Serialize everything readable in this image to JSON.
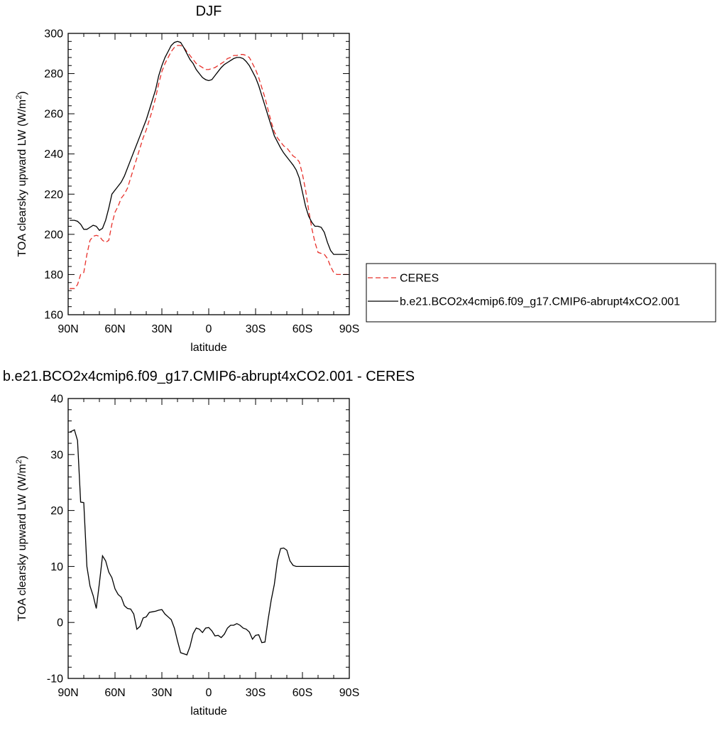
{
  "chart_data": [
    {
      "type": "line",
      "title": "DJF",
      "xlabel": "latitude",
      "ylabel": "TOA clearsky upward LW (W/m",
      "ylabel_sup": "2",
      "ylabel_end": ")",
      "xlim": [
        90,
        -90
      ],
      "ylim": [
        160,
        300
      ],
      "x_ticks": [
        90,
        60,
        30,
        0,
        -30,
        -60,
        -90
      ],
      "x_tick_labels": [
        "90N",
        "60N",
        "30N",
        "0",
        "30S",
        "60S",
        "90S"
      ],
      "y_ticks": [
        160,
        180,
        200,
        220,
        240,
        260,
        280,
        300
      ],
      "y_tick_labels": [
        "160",
        "180",
        "200",
        "220",
        "240",
        "260",
        "280",
        "300"
      ],
      "legend": "right",
      "series": [
        {
          "name": "CERES",
          "color": "#e8302a",
          "dash": "dashed",
          "x": [
            89,
            86,
            84,
            82,
            80,
            78,
            76,
            74,
            72,
            70,
            68,
            66,
            64,
            62,
            60,
            58,
            56,
            54,
            52,
            50,
            48,
            46,
            44,
            42,
            40,
            38,
            36,
            34,
            32,
            30,
            28,
            26,
            24,
            22,
            20,
            18,
            16,
            14,
            12,
            10,
            8,
            6,
            4,
            2,
            0,
            -2,
            -4,
            -6,
            -8,
            -10,
            -12,
            -14,
            -16,
            -18,
            -20,
            -22,
            -24,
            -26,
            -28,
            -30,
            -32,
            -34,
            -36,
            -38,
            -40,
            -42,
            -44,
            -46,
            -48,
            -50,
            -52,
            -54,
            -56,
            -58,
            -60,
            -62,
            -64,
            -66,
            -68,
            -70,
            -72,
            -74,
            -76,
            -78,
            -80,
            -82,
            -84,
            -86,
            -88,
            -89
          ],
          "y": [
            173,
            173,
            175,
            180,
            181,
            190,
            197,
            199,
            199.5,
            199,
            197,
            196,
            197,
            205,
            211,
            214,
            218,
            220,
            223,
            228,
            233,
            238,
            243,
            248,
            252,
            257,
            262,
            268,
            275,
            281,
            285,
            288,
            291,
            293,
            294,
            294,
            293,
            291,
            289,
            287,
            285,
            284,
            283,
            282,
            282,
            282.5,
            283,
            284,
            285,
            286,
            287.5,
            288,
            289,
            289,
            289.5,
            289.5,
            289,
            288,
            285,
            282,
            278,
            273,
            268,
            262,
            256,
            251,
            248,
            246,
            244,
            243,
            241,
            239,
            238,
            236,
            230,
            222,
            212,
            203,
            196,
            191,
            190.5,
            190,
            188,
            184,
            181,
            180,
            180,
            180,
            180,
            180
          ],
          "comment_ignore": ""
        },
        {
          "name": "b.e21.BCO2x4cmip6.f09_g17.CMIP6-abrupt4xCO2.001",
          "color": "#000000",
          "dash": "solid",
          "x": [
            89,
            86,
            84,
            82,
            80,
            78,
            76,
            74,
            72,
            70,
            68,
            66,
            64,
            62,
            60,
            58,
            56,
            54,
            52,
            50,
            48,
            46,
            44,
            42,
            40,
            38,
            36,
            34,
            32,
            30,
            28,
            26,
            24,
            22,
            20,
            18,
            16,
            14,
            12,
            10,
            8,
            6,
            4,
            2,
            0,
            -2,
            -4,
            -6,
            -8,
            -10,
            -12,
            -14,
            -16,
            -18,
            -20,
            -22,
            -24,
            -26,
            -28,
            -30,
            -32,
            -34,
            -36,
            -38,
            -40,
            -42,
            -44,
            -46,
            -48,
            -50,
            -52,
            -54,
            -56,
            -58,
            -60,
            -62,
            -64,
            -66,
            -68,
            -70,
            -72,
            -74,
            -76,
            -78,
            -80,
            -82,
            -84,
            -86,
            -88,
            -89
          ],
          "y": [
            207,
            207,
            206.5,
            205,
            202.5,
            202.5,
            203.5,
            204.5,
            204,
            202,
            203,
            207,
            213,
            220,
            222,
            224,
            226,
            229,
            233,
            237,
            241,
            245,
            249,
            253,
            257,
            262,
            267,
            272,
            279,
            284,
            288,
            291,
            294,
            295.5,
            296,
            295.5,
            293,
            290,
            287,
            285,
            282,
            280,
            278,
            277,
            276.5,
            277,
            279,
            281,
            283,
            284.5,
            285.5,
            286.5,
            287.5,
            288,
            288,
            287.5,
            286,
            284,
            281,
            278,
            274,
            269,
            264,
            259,
            254,
            249,
            246,
            243,
            240.5,
            238.5,
            236.5,
            234.5,
            232,
            228,
            221,
            214,
            209,
            206,
            204,
            204,
            203.5,
            201,
            196,
            192,
            190,
            190,
            190,
            190,
            190,
            190
          ]
        }
      ]
    },
    {
      "type": "line",
      "title": "b.e21.BCO2x4cmip6.f09_g17.CMIP6-abrupt4xCO2.001 - CERES",
      "xlabel": "latitude",
      "ylabel": "TOA clearsky upward LW (W/m",
      "ylabel_sup": "2",
      "ylabel_end": ")",
      "xlim": [
        90,
        -90
      ],
      "ylim": [
        -10,
        40
      ],
      "x_ticks": [
        90,
        60,
        30,
        0,
        -30,
        -60,
        -90
      ],
      "x_tick_labels": [
        "90N",
        "60N",
        "30N",
        "0",
        "30S",
        "60S",
        "90S"
      ],
      "y_ticks": [
        -10,
        0,
        10,
        20,
        30,
        40
      ],
      "y_tick_labels": [
        "-10",
        "0",
        "10",
        "20",
        "30",
        "40"
      ],
      "series": [
        {
          "name": "",
          "color": "#000000",
          "dash": "solid",
          "x": [
            89,
            86,
            84,
            82,
            80,
            78,
            76,
            74,
            72,
            70,
            68,
            66,
            64,
            62,
            60,
            58,
            56,
            54,
            52,
            50,
            48,
            46,
            44,
            42,
            40,
            38,
            36,
            34,
            32,
            30,
            28,
            26,
            24,
            22,
            20,
            18,
            16,
            14,
            12,
            10,
            8,
            6,
            4,
            2,
            0,
            -2,
            -4,
            -6,
            -8,
            -10,
            -12,
            -14,
            -16,
            -18,
            -20,
            -22,
            -24,
            -26,
            -28,
            -30,
            -32,
            -34,
            -36,
            -38,
            -40,
            -42,
            -44,
            -46,
            -48,
            -50,
            -52,
            -54,
            -56,
            -58,
            -60,
            -62,
            -64,
            -66,
            -68,
            -70,
            -72,
            -74,
            -76,
            -78,
            -80,
            -82,
            -84,
            -86,
            -88,
            -89
          ],
          "y": [
            34,
            34.4,
            32.5,
            21.5,
            21.4,
            10,
            6.5,
            4.8,
            2.5,
            7,
            11.9,
            11,
            9,
            8,
            6,
            5,
            4.5,
            3,
            2.5,
            2.4,
            1.5,
            -1.2,
            -0.7,
            0.8,
            1,
            1.8,
            1.9,
            2,
            2.2,
            2.3,
            1.5,
            1,
            0.5,
            -1,
            -3.3,
            -5.4,
            -5.6,
            -5.8,
            -4.3,
            -2,
            -1,
            -1.2,
            -1.8,
            -1,
            -0.9,
            -1.5,
            -2.4,
            -2.3,
            -2.7,
            -2.1,
            -1,
            -0.5,
            -0.5,
            -0.2,
            -0.5,
            -1,
            -1.2,
            -1.7,
            -3,
            -2.3,
            -2.2,
            -3.6,
            -3.5,
            0.5,
            4,
            6.8,
            11,
            13.2,
            13.3,
            12.9,
            11,
            10.2,
            10,
            10,
            10,
            10,
            10,
            10,
            10,
            10,
            10,
            10,
            10,
            10,
            10,
            10,
            10,
            10,
            10,
            10
          ]
        }
      ]
    }
  ]
}
